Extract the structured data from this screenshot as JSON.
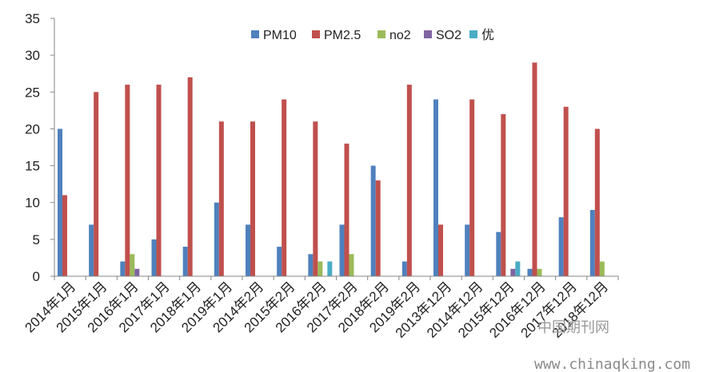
{
  "chart_data": {
    "type": "bar",
    "title": "",
    "xlabel": "",
    "ylabel": "",
    "ylim": [
      0,
      35
    ],
    "yticks": [
      0,
      5,
      10,
      15,
      20,
      25,
      30,
      35
    ],
    "grid": false,
    "legend_position": "top",
    "categories": [
      "2014年1月",
      "2015年1月",
      "2016年1月",
      "2017年1月",
      "2018年1月",
      "2019年1月",
      "2014年2月",
      "2015年2月",
      "2016年2月",
      "2017年2月",
      "2018年2月",
      "2019年2月",
      "2013年12月",
      "2014年12月",
      "2015年12月",
      "2016年12月",
      "2017年12月",
      "2018年12月"
    ],
    "series": [
      {
        "name": "PM10",
        "color": "#4f81bd",
        "values": [
          20,
          7,
          2,
          5,
          4,
          10,
          7,
          4,
          3,
          7,
          15,
          2,
          24,
          7,
          6,
          1,
          8,
          9
        ]
      },
      {
        "name": "PM2.5",
        "color": "#c0504d",
        "values": [
          11,
          25,
          26,
          26,
          27,
          21,
          21,
          24,
          21,
          18,
          13,
          26,
          7,
          24,
          22,
          29,
          23,
          20
        ]
      },
      {
        "name": "no2",
        "color": "#9bbb59",
        "values": [
          0,
          0,
          3,
          0,
          0,
          0,
          0,
          0,
          2,
          3,
          0,
          0,
          0,
          0,
          0,
          1,
          0,
          2
        ]
      },
      {
        "name": "SO2",
        "color": "#8064a2",
        "values": [
          0,
          0,
          1,
          0,
          0,
          0,
          0,
          0,
          0,
          0,
          0,
          0,
          0,
          0,
          1,
          0,
          0,
          0
        ]
      },
      {
        "name": "优",
        "color": "#4bacc6",
        "values": [
          0,
          0,
          0,
          0,
          0,
          0,
          0,
          0,
          2,
          0,
          0,
          0,
          0,
          0,
          2,
          0,
          0,
          0
        ]
      }
    ]
  },
  "watermark": {
    "logo_text": "中国期刊网",
    "url": "www.chinaqking.com"
  }
}
